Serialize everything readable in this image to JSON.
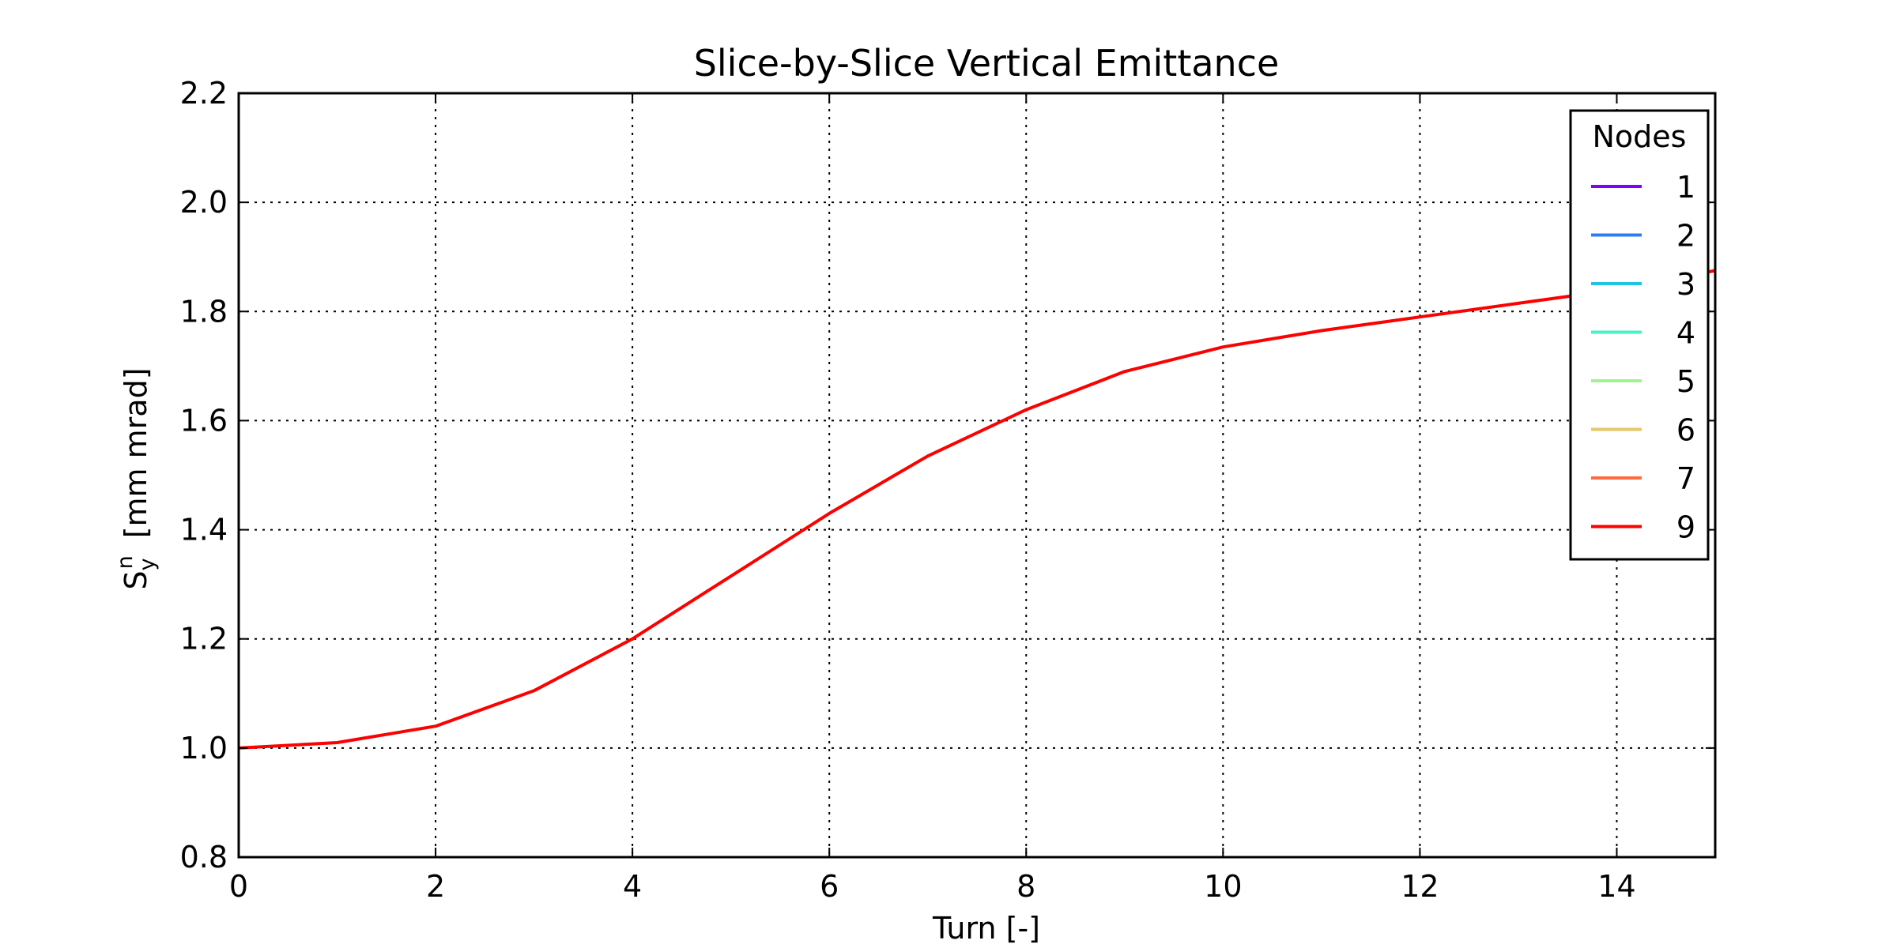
{
  "chart_data": {
    "type": "line",
    "title": "Slice-by-Slice Vertical Emittance",
    "xlabel": "Turn [-]",
    "ylabel": {
      "base": "S",
      "subscript": "y",
      "superscript": "n",
      "unit": "[mm mrad]"
    },
    "xlim": [
      0,
      15
    ],
    "ylim": [
      0.8,
      2.2
    ],
    "x_ticks": [
      0,
      2,
      4,
      6,
      8,
      10,
      12,
      14
    ],
    "y_ticks": [
      0.8,
      1.0,
      1.2,
      1.4,
      1.6,
      1.8,
      2.0,
      2.2
    ],
    "x_tick_labels": [
      "0",
      "2",
      "4",
      "6",
      "8",
      "10",
      "12",
      "14"
    ],
    "y_tick_labels": [
      "0.8",
      "1.0",
      "1.2",
      "1.4",
      "1.6",
      "1.8",
      "2.0",
      "2.2"
    ],
    "grid": true,
    "legend": {
      "title": "Nodes",
      "placement": "top-right",
      "entries": [
        {
          "name": "1",
          "color": "#8000ff"
        },
        {
          "name": "2",
          "color": "#2c7ef7"
        },
        {
          "name": "3",
          "color": "#1fc3e3"
        },
        {
          "name": "4",
          "color": "#46f2c8"
        },
        {
          "name": "5",
          "color": "#a0f48f"
        },
        {
          "name": "6",
          "color": "#e6c86a"
        },
        {
          "name": "7",
          "color": "#ff6a40"
        },
        {
          "name": "9",
          "color": "#ff0000"
        }
      ]
    },
    "series": [
      {
        "name": "9",
        "color": "#ff0000",
        "x": [
          0,
          1,
          2,
          3,
          4,
          5,
          6,
          7,
          8,
          9,
          10,
          11,
          12,
          13,
          14,
          15
        ],
        "y": [
          1.0,
          1.01,
          1.04,
          1.105,
          1.2,
          1.315,
          1.43,
          1.535,
          1.62,
          1.69,
          1.735,
          1.765,
          1.79,
          1.815,
          1.84,
          1.875
        ]
      }
    ]
  }
}
